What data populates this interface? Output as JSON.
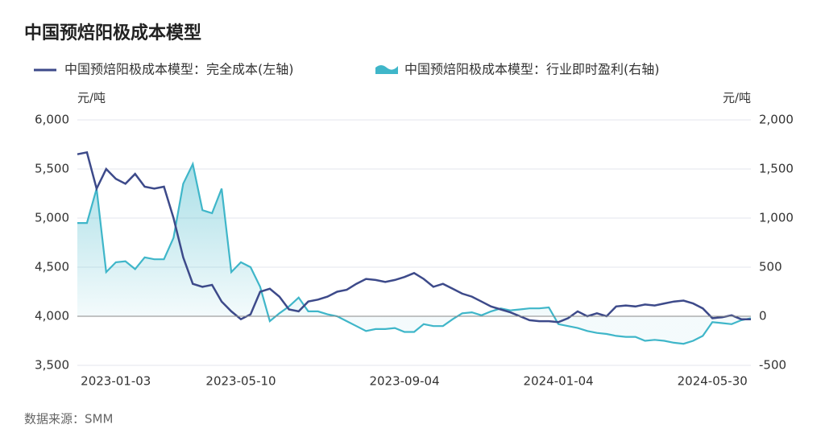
{
  "chart_data": {
    "type": "line_area",
    "title": "中国预焙阳极成本模型",
    "source": "数据来源：SMM",
    "y_unit": "元/吨",
    "y2_unit": "元/吨",
    "categories": [
      null,
      null,
      null,
      null,
      "2023-01-03",
      null,
      null,
      null,
      null,
      null,
      null,
      null,
      null,
      null,
      null,
      null,
      null,
      "2023-05-10",
      null,
      null,
      null,
      null,
      null,
      null,
      null,
      null,
      null,
      null,
      null,
      null,
      null,
      null,
      null,
      null,
      "2023-09-04",
      null,
      null,
      null,
      null,
      null,
      null,
      null,
      null,
      null,
      null,
      null,
      null,
      null,
      null,
      null,
      "2024-01-04",
      null,
      null,
      null,
      null,
      null,
      null,
      null,
      null,
      null,
      null,
      null,
      null,
      null,
      null,
      null,
      "2024-05-30",
      null,
      null,
      null,
      null
    ],
    "series": [
      {
        "name": "中国预焙阳极成本模型：完全成本(左轴)",
        "color": "#3d4a8a",
        "axis": "y",
        "values": [
          5650,
          5670,
          5300,
          5500,
          5400,
          5350,
          5450,
          5320,
          5300,
          5320,
          5000,
          4600,
          4330,
          4300,
          4320,
          4150,
          4050,
          3970,
          4020,
          4250,
          4280,
          4200,
          4070,
          4050,
          4150,
          4170,
          4200,
          4250,
          4270,
          4330,
          4380,
          4370,
          4350,
          4370,
          4400,
          4440,
          4380,
          4300,
          4330,
          4280,
          4230,
          4200,
          4150,
          4100,
          4070,
          4040,
          4000,
          3960,
          3950,
          3950,
          3940,
          3980,
          4050,
          4000,
          4030,
          4000,
          4100,
          4110,
          4100,
          4120,
          4110,
          4130,
          4150,
          4160,
          4130,
          4080,
          3980,
          3990,
          4010,
          3970,
          3970
        ]
      },
      {
        "name": "中国预焙阳极成本模型：行业即时盈利(右轴)",
        "color": "#3fb6c9",
        "axis": "y2",
        "values": [
          950,
          950,
          1300,
          450,
          550,
          560,
          480,
          600,
          580,
          580,
          800,
          1350,
          1550,
          1080,
          1050,
          1300,
          450,
          550,
          500,
          300,
          -50,
          30,
          100,
          190,
          50,
          50,
          20,
          0,
          -50,
          -100,
          -150,
          -130,
          -130,
          -120,
          -160,
          -160,
          -80,
          -100,
          -100,
          -30,
          30,
          40,
          10,
          50,
          80,
          60,
          70,
          80,
          80,
          90,
          -80,
          -100,
          -120,
          -150,
          -170,
          -180,
          -200,
          -210,
          -210,
          -250,
          -240,
          -250,
          -270,
          -280,
          -250,
          -200,
          -60,
          -70,
          -80,
          -40,
          -20
        ]
      }
    ],
    "ylim": [
      3500,
      6000
    ],
    "yticks": [
      {
        "value": 3500,
        "label": "3,500"
      },
      {
        "value": 4000,
        "label": "4,000"
      },
      {
        "value": 4500,
        "label": "4,500"
      },
      {
        "value": 5000,
        "label": "5,000"
      },
      {
        "value": 5500,
        "label": "5,500"
      },
      {
        "value": 6000,
        "label": "6,000"
      }
    ],
    "y2lim": [
      -500,
      2000
    ],
    "y2ticks": [
      -500,
      0,
      500,
      {
        "value": 1000,
        "label": "1,000"
      },
      {
        "value": 1500,
        "label": "1,500"
      },
      {
        "value": 2000,
        "label": "2,000"
      }
    ],
    "grid": true
  }
}
